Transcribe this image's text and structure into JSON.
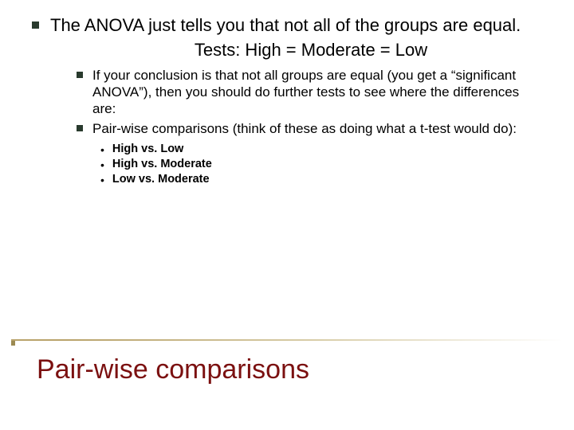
{
  "colors": {
    "bullet": "#293a2d",
    "title": "#7b1010",
    "line_gradient_start": "#b9a36b",
    "line_gradient_end": "#d8cda8",
    "text": "#000000",
    "background": "#ffffff"
  },
  "main_bullet": "The ANOVA just tells you that not all of the groups are equal.",
  "tests_line": "Tests: High = Moderate = Low",
  "sub_bullets": [
    "If your conclusion is that not all groups are equal (you get a “significant ANOVA”), then you should do further tests to see where the differences are:",
    "Pair-wise comparisons (think of these as doing what a t-test would do):"
  ],
  "sub_sub_bullets": [
    "High vs. Low",
    "High vs. Moderate",
    "Low vs. Moderate"
  ],
  "title": "Pair-wise comparisons"
}
